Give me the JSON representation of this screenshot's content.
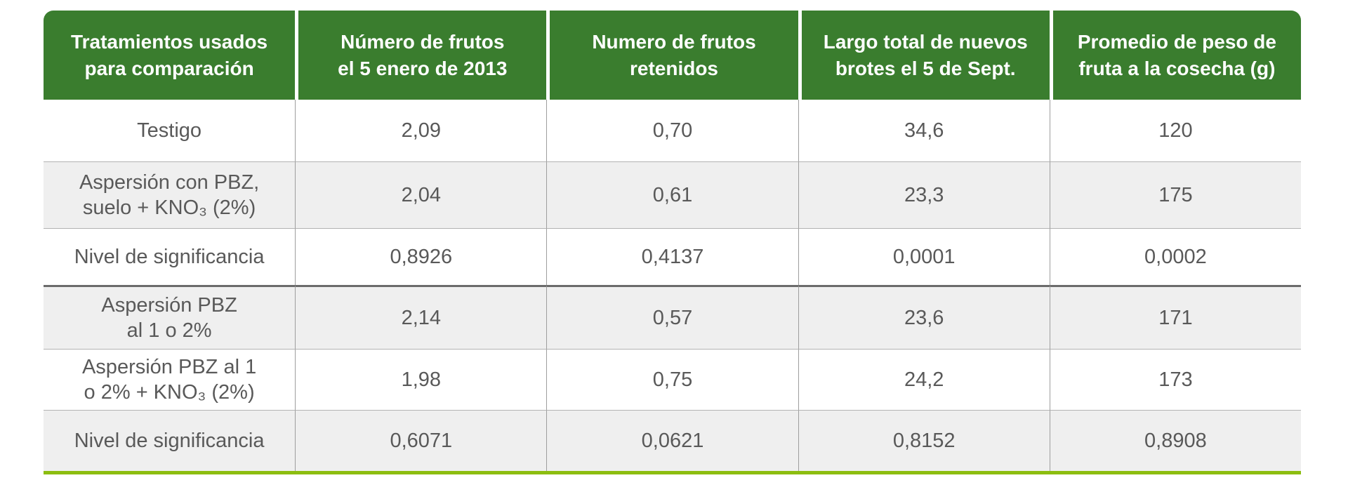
{
  "chart_data": {
    "type": "table",
    "columns": [
      [
        "Tratamientos usados",
        "para comparación"
      ],
      [
        "Número de frutos",
        "el 5 enero de 2013"
      ],
      [
        "Numero de frutos",
        "retenidos"
      ],
      [
        "Largo total de nuevos",
        "brotes el 5 de Sept."
      ],
      [
        "Promedio de peso de",
        "fruta a la cosecha (g)"
      ]
    ],
    "rows": [
      {
        "treatment": [
          "Testigo"
        ],
        "values": [
          "2,09",
          "0,70",
          "34,6",
          "120"
        ],
        "shaded": false,
        "section_divider_above": false
      },
      {
        "treatment": [
          "Aspersión con PBZ,",
          "suelo + KNO₃ (2%)"
        ],
        "values": [
          "2,04",
          "0,61",
          "23,3",
          "175"
        ],
        "shaded": true,
        "section_divider_above": false
      },
      {
        "treatment": [
          "Nivel de significancia"
        ],
        "values": [
          "0,8926",
          "0,4137",
          "0,0001",
          "0,0002"
        ],
        "shaded": false,
        "section_divider_above": false
      },
      {
        "treatment": [
          "Aspersión PBZ",
          "al 1 o 2%"
        ],
        "values": [
          "2,14",
          "0,57",
          "23,6",
          "171"
        ],
        "shaded": true,
        "section_divider_above": true
      },
      {
        "treatment": [
          "Aspersión PBZ al 1",
          "o 2% + KNO₃ (2%)"
        ],
        "values": [
          "1,98",
          "0,75",
          "24,2",
          "173"
        ],
        "shaded": false,
        "section_divider_above": false
      },
      {
        "treatment": [
          "Nivel de significancia"
        ],
        "values": [
          "0,6071",
          "0,0621",
          "0,8152",
          "0,8908"
        ],
        "shaded": true,
        "section_divider_above": false
      }
    ]
  },
  "colors": {
    "header_bg": "#3a7d2e",
    "header_text": "#ffffff",
    "row_shaded_bg": "#efefef",
    "body_text": "#595959",
    "grid_line": "#9e9e9e",
    "row_separator": "#b3b3b3",
    "section_divider": "#6b6b6b",
    "bottom_accent": "#8cbd10"
  }
}
